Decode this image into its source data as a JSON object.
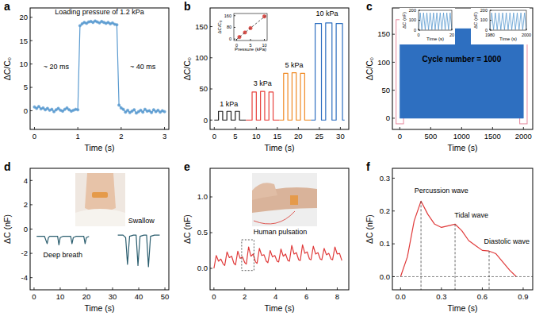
{
  "chart_data": [
    {
      "type": "line",
      "panel_label": "a",
      "xlabel": "Time (s)",
      "ylabel": "ΔC/C₀",
      "annotations": [
        "Loading pressure of 1.2 kPa",
        "~ 20 ms",
        "~ 40 ms"
      ],
      "xlim": [
        -0.1,
        3.1
      ],
      "ylim": [
        -4,
        22
      ],
      "xticks": [
        0,
        1,
        2,
        3
      ],
      "yticks": [
        0,
        5,
        10,
        15,
        20
      ],
      "grid": false,
      "x": [
        0,
        0.05,
        0.1,
        0.15,
        0.2,
        0.25,
        0.3,
        0.35,
        0.4,
        0.45,
        0.5,
        0.55,
        0.6,
        0.65,
        0.7,
        0.75,
        0.8,
        0.85,
        0.9,
        0.95,
        1,
        1.05,
        1.1,
        1.15,
        1.2,
        1.25,
        1.3,
        1.35,
        1.4,
        1.45,
        1.5,
        1.55,
        1.6,
        1.65,
        1.7,
        1.75,
        1.8,
        1.85,
        1.9,
        1.95,
        2,
        2.05,
        2.1,
        2.15,
        2.2,
        2.25,
        2.3,
        2.35,
        2.4,
        2.45,
        2.5,
        2.55,
        2.6,
        2.65,
        2.7,
        2.75,
        2.8,
        2.85,
        2.9,
        2.95,
        3
      ],
      "series": [
        {
          "color": "#5b9bd0",
          "marker": "circle",
          "values": [
            0.8,
            0.5,
            0.9,
            0.4,
            0.6,
            0.2,
            0.5,
            0.1,
            0.3,
            -0.2,
            0.2,
            0.5,
            0.1,
            -0.1,
            0.3,
            0.6,
            0.2,
            -0.1,
            0.1,
            0.3,
            0.2,
            18.2,
            18.6,
            18.9,
            18.7,
            19.0,
            19.1,
            18.9,
            19.2,
            19.0,
            18.8,
            19.1,
            18.9,
            18.7,
            18.9,
            18.6,
            18.8,
            18.5,
            18.4,
            1.2,
            0.6,
            0.3,
            -0.3,
            0.1,
            -0.4,
            -0.1,
            0.2,
            -0.5,
            -0.2,
            0.1,
            -0.3,
            0.3,
            -0.1,
            0.0,
            -0.4,
            0.2,
            -0.2,
            0.1,
            -0.3,
            0.0,
            -0.2
          ]
        }
      ]
    },
    {
      "type": "line",
      "panel_label": "b",
      "xlabel": "Time (s)",
      "ylabel": "ΔC/C₀",
      "annotations": [
        "1 kPa",
        "3 kPa",
        "5 kPa",
        "10 kPa"
      ],
      "xlim": [
        -1,
        32
      ],
      "ylim": [
        -15,
        180
      ],
      "xticks": [
        0,
        5,
        10,
        15,
        20,
        25,
        30
      ],
      "yticks": [
        0,
        50,
        100,
        150
      ],
      "grid": false,
      "series": [
        {
          "color": "#222222",
          "x": [
            0,
            1,
            1,
            2,
            2,
            3,
            3,
            4,
            4,
            5,
            5,
            6,
            6,
            7.5
          ],
          "values": [
            0,
            0,
            14,
            14,
            0,
            0,
            14,
            14,
            0,
            0,
            14,
            14,
            0,
            0
          ]
        },
        {
          "color": "#e8413c",
          "x": [
            7.5,
            9,
            9,
            10,
            10,
            11,
            11,
            12,
            12,
            13,
            13,
            14,
            14,
            15.5
          ],
          "values": [
            0,
            0,
            45,
            45,
            0,
            0,
            46,
            46,
            0,
            0,
            45,
            45,
            0,
            0
          ]
        },
        {
          "color": "#f08a24",
          "x": [
            15.5,
            16.5,
            16.5,
            17.5,
            17.5,
            18.5,
            18.5,
            19.5,
            19.5,
            20.5,
            20.5,
            21.5,
            21.5,
            23
          ],
          "values": [
            0,
            0,
            75,
            75,
            0,
            0,
            76,
            76,
            0,
            0,
            75,
            75,
            0,
            0
          ]
        },
        {
          "color": "#2e6fc0",
          "x": [
            23,
            24,
            24,
            25.5,
            25.5,
            26.5,
            26.5,
            28,
            28,
            29,
            29,
            30.5,
            30.5,
            31
          ],
          "values": [
            0,
            0,
            155,
            155,
            0,
            0,
            156,
            156,
            0,
            0,
            155,
            155,
            0,
            0
          ]
        }
      ]
    },
    {
      "type": "scatter",
      "xlabel": "Pressure (kPa)",
      "ylabel": "ΔC/C₀",
      "xlim": [
        -1,
        11
      ],
      "ylim": [
        -10,
        175
      ],
      "xticks": [
        0,
        5,
        10
      ],
      "yticks": [
        0,
        80,
        160
      ],
      "grid": false,
      "series": [
        {
          "color": "#d9352e",
          "marker": "circle",
          "x": [
            1,
            3,
            5,
            10
          ],
          "values": [
            14,
            45,
            75,
            155
          ]
        },
        {
          "color": "#333333",
          "line_style": "dashed",
          "x": [
            0,
            10.5
          ],
          "values": [
            -2,
            160
          ]
        }
      ]
    },
    {
      "type": "area",
      "panel_label": "c",
      "xlabel": "Time (s)",
      "ylabel": "ΔC/C₀",
      "annotations": [
        "Cycle number = 1000"
      ],
      "xlim": [
        -120,
        2150
      ],
      "ylim": [
        -20,
        197
      ],
      "xticks": [
        0,
        500,
        1000,
        1500,
        2000
      ],
      "yticks": [
        0,
        50,
        100,
        150
      ],
      "grid": false,
      "x": [
        0,
        2000
      ],
      "series": [
        {
          "color": "#2e6fc0",
          "values": [
            160,
            160
          ]
        }
      ]
    },
    {
      "type": "line",
      "xlabel": "Time (s)",
      "ylabel": "ΔC (nF)",
      "xlim": [
        0,
        20
      ],
      "ylim": [
        0,
        200
      ],
      "xticks": [
        0,
        20
      ],
      "yticks": [
        0,
        100,
        200
      ],
      "grid": false,
      "x": [
        0,
        1,
        2,
        3,
        4,
        5,
        6,
        7,
        8,
        9,
        10,
        11,
        12,
        13,
        14,
        15,
        16,
        17,
        18,
        19,
        20
      ],
      "series": [
        {
          "color": "#5b9bd0",
          "values": [
            5,
            175,
            5,
            175,
            5,
            175,
            5,
            175,
            5,
            175,
            5,
            175,
            5,
            175,
            5,
            175,
            5,
            175,
            5,
            175,
            5
          ]
        }
      ]
    },
    {
      "type": "line",
      "xlabel": "Time (s)",
      "ylabel": "ΔC (nF)",
      "xlim": [
        1980,
        2000
      ],
      "ylim": [
        0,
        200
      ],
      "xticks": [
        1980,
        2000
      ],
      "yticks": [
        0,
        100,
        200
      ],
      "grid": false,
      "x": [
        1980,
        1981,
        1982,
        1983,
        1984,
        1985,
        1986,
        1987,
        1988,
        1989,
        1990,
        1991,
        1992,
        1993,
        1994,
        1995,
        1996,
        1997,
        1998,
        1999,
        2000
      ],
      "series": [
        {
          "color": "#5b9bd0",
          "values": [
            5,
            175,
            5,
            175,
            5,
            175,
            5,
            175,
            5,
            175,
            5,
            175,
            5,
            175,
            5,
            175,
            5,
            175,
            5,
            175,
            5
          ]
        }
      ]
    },
    {
      "type": "line",
      "panel_label": "d",
      "xlabel": "Time (s)",
      "ylabel": "ΔC (nF)",
      "annotations": [
        "Deep breath",
        "Swallow"
      ],
      "xlim": [
        -1.5,
        51.5
      ],
      "ylim": [
        -5,
        5
      ],
      "xticks": [
        0,
        10,
        20,
        30,
        40,
        50
      ],
      "yticks": [
        -4,
        -2,
        0,
        2,
        4
      ],
      "grid": false,
      "x": [
        1,
        4,
        5,
        5.5,
        6,
        7,
        9,
        9.5,
        10,
        11,
        14,
        14.5,
        15,
        16,
        19,
        19.5,
        20,
        21,
        26,
        32,
        34,
        35,
        35.7,
        36.5,
        38,
        39,
        39.7,
        40.5,
        42,
        43,
        43.7,
        44.5,
        46,
        48
      ],
      "series": [
        {
          "color": "#2a5d6e",
          "values": [
            -0.6,
            -0.6,
            -1.2,
            -0.7,
            -0.6,
            -0.6,
            -0.6,
            -1.3,
            -0.7,
            -0.6,
            -0.6,
            -1.2,
            -0.7,
            -0.6,
            -0.6,
            -1.2,
            -0.7,
            -0.6,
            null,
            -0.5,
            -0.5,
            -0.7,
            -2.9,
            -0.6,
            -0.5,
            -0.5,
            -3.0,
            -0.6,
            -0.5,
            -0.5,
            -3.1,
            -0.6,
            -0.5,
            -0.5
          ]
        }
      ]
    },
    {
      "type": "line",
      "panel_label": "e",
      "xlabel": "Time (s)",
      "ylabel": "ΔC (nF)",
      "annotations": [
        "Human pulsation"
      ],
      "xlim": [
        -0.25,
        8.75
      ],
      "ylim": [
        -0.3,
        1.4
      ],
      "xticks": [
        0,
        2,
        4,
        6,
        8
      ],
      "yticks": [
        {
          "value": 0,
          "label": "0.0"
        },
        0.5,
        {
          "value": 1,
          "label": "1.0"
        }
      ],
      "grid": false,
      "x": [
        0,
        0.15,
        0.3,
        0.45,
        0.6,
        0.7,
        0.85,
        1.0,
        1.15,
        1.3,
        1.4,
        1.55,
        1.7,
        1.85,
        2.0,
        2.1,
        2.25,
        2.4,
        2.55,
        2.7,
        2.8,
        2.95,
        3.1,
        3.25,
        3.4,
        3.5,
        3.65,
        3.8,
        3.95,
        4.1,
        4.2,
        4.35,
        4.5,
        4.65,
        4.8,
        4.9,
        5.05,
        5.2,
        5.35,
        5.5,
        5.6,
        5.75,
        5.9,
        6.05,
        6.2,
        6.3,
        6.45,
        6.6,
        6.75,
        6.9,
        7.0,
        7.15,
        7.3,
        7.45,
        7.6,
        7.7,
        7.85,
        8.0,
        8.15,
        8.3
      ],
      "series": [
        {
          "color": "#e03a3a",
          "values": [
            0.0,
            0.18,
            0.1,
            0.13,
            0.06,
            0.04,
            0.23,
            0.15,
            0.17,
            0.07,
            0.05,
            0.24,
            0.14,
            0.16,
            0.08,
            0.06,
            0.3,
            0.17,
            0.2,
            0.09,
            0.07,
            0.28,
            0.18,
            0.19,
            0.1,
            0.08,
            0.25,
            0.16,
            0.18,
            0.1,
            0.09,
            0.27,
            0.17,
            0.2,
            0.11,
            0.1,
            0.32,
            0.2,
            0.22,
            0.12,
            0.11,
            0.33,
            0.21,
            0.23,
            0.13,
            0.12,
            0.31,
            0.2,
            0.22,
            0.13,
            0.12,
            0.28,
            0.19,
            0.21,
            0.13,
            0.12,
            0.3,
            0.2,
            0.21,
            0.11
          ]
        }
      ]
    },
    {
      "type": "line",
      "panel_label": "f",
      "xlabel": "Time (s)",
      "ylabel": "ΔC (nF)",
      "annotations": [
        "Percussion wave",
        "Tidal wave",
        "Diastolic wave"
      ],
      "xlim": [
        -0.06,
        0.97
      ],
      "ylim": [
        -0.04,
        0.33
      ],
      "xticks": [
        {
          "value": 0,
          "label": "0.0"
        },
        0.3,
        0.6,
        0.9
      ],
      "yticks": [
        {
          "value": 0,
          "label": "0.0"
        },
        0.1,
        0.2,
        0.3
      ],
      "grid": false,
      "x": [
        0,
        0.05,
        0.1,
        0.15,
        0.2,
        0.25,
        0.3,
        0.35,
        0.4,
        0.45,
        0.5,
        0.55,
        0.6,
        0.65,
        0.7,
        0.75,
        0.8,
        0.85
      ],
      "series": [
        {
          "color": "#e03a3a",
          "values": [
            0,
            0.06,
            0.17,
            0.23,
            0.19,
            0.16,
            0.15,
            0.155,
            0.16,
            0.14,
            0.11,
            0.095,
            0.08,
            0.078,
            0.07,
            0.045,
            0.02,
            0.0
          ]
        }
      ]
    }
  ]
}
